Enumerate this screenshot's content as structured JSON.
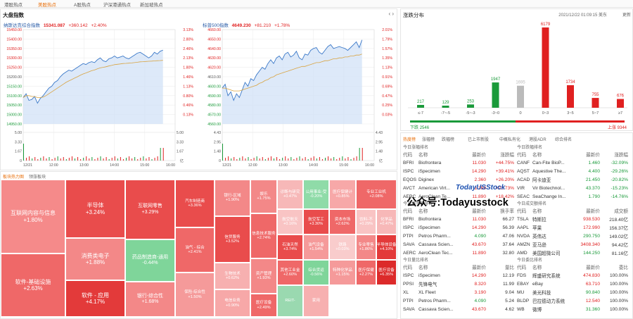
{
  "tabs": [
    "港股热点",
    "美股热点",
    "A股热点",
    "沪深港通热点",
    "新加坡热点"
  ],
  "market": {
    "title": "大盘指数",
    "nasdaq": {
      "name": "纳斯达克综合指数",
      "price": "15341.087",
      "change": "+360.142",
      "pct": "+2.40%",
      "y_ticks": [
        "15450.00",
        "15400.00",
        "15350.00",
        "15300.00",
        "15250.00",
        "15200.00",
        "15150.00",
        "15100.00",
        "15050.00",
        "15000.00",
        "14950.00"
      ],
      "pct_ticks": [
        "3.13%",
        "2.80%",
        "2.46%",
        "2.13%",
        "1.80%",
        "1.46%",
        "1.13%",
        "0.80%",
        "0.46%",
        "0.13%"
      ],
      "vol_left": [
        "5.00",
        "3.33",
        "1.67",
        "0"
      ],
      "vol_right": [
        "5.00",
        "3.33",
        "1.67",
        "亿"
      ],
      "x_ticks": [
        "12/21",
        "12:00",
        "13:00",
        "14:00",
        "15:00",
        "16:00"
      ],
      "series": [
        15090,
        15110,
        15075,
        15080,
        15095,
        15060,
        15085,
        15100,
        15120,
        15140,
        15150,
        15170,
        15180,
        15200,
        15215,
        15225,
        15235,
        15230,
        15240,
        15250,
        15260,
        15270,
        15265,
        15275,
        15280,
        15275,
        15290,
        15300,
        15285,
        15280,
        15295,
        15300,
        15310,
        15300,
        15305,
        15310,
        15300,
        15295,
        15305,
        15315,
        15325,
        15330,
        15320,
        15310,
        15300,
        15310,
        15330,
        15320,
        15335,
        15341
      ],
      "avg": [
        15090,
        15100,
        15100,
        15095,
        15095,
        15090,
        15090,
        15092,
        15100,
        15110,
        15120,
        15130,
        15140,
        15150,
        15160,
        15170,
        15178,
        15185,
        15193,
        15200,
        15208,
        15215,
        15220,
        15226,
        15232,
        15236,
        15242,
        15247,
        15250,
        15253,
        15257,
        15260,
        15264,
        15266,
        15268,
        15270,
        15271,
        15272,
        15273,
        15275,
        15277,
        15279,
        15280,
        15281,
        15282,
        15283,
        15284,
        15285,
        15286,
        15287
      ],
      "ylim": [
        14950,
        15450
      ]
    },
    "sp500": {
      "name": "标普500指数",
      "price": "4649.230",
      "change": "+81.210",
      "pct": "+1.78%",
      "y_ticks": [
        "4660.00",
        "4650.00",
        "4640.00",
        "4630.00",
        "4620.00",
        "4610.00",
        "4600.00",
        "4590.00",
        "4580.00",
        "4570.00",
        "4560.00"
      ],
      "pct_ticks": [
        "2.01%",
        "1.79%",
        "1.57%",
        "1.35%",
        "1.13%",
        "0.91%",
        "0.69%",
        "0.47%",
        "0.25%",
        "0.03%"
      ],
      "vol_left": [
        "4.43",
        "2.95",
        "1.48",
        "0"
      ],
      "vol_right": [
        "4.43",
        "2.95",
        "1.48",
        "亿"
      ],
      "x_ticks": [
        "12/21",
        "12:00",
        "13:00",
        "14:00",
        "15:00",
        "16:00"
      ],
      "series": [
        4598,
        4602,
        4590,
        4594,
        4585,
        4592,
        4588,
        4596,
        4604,
        4600,
        4608,
        4606,
        4612,
        4616,
        4620,
        4618,
        4624,
        4628,
        4624,
        4630,
        4632,
        4628,
        4634,
        4636,
        4631,
        4633,
        4637,
        4630,
        4628,
        4634,
        4633,
        4638,
        4640,
        4641,
        4636,
        4634,
        4638,
        4642,
        4644,
        4640,
        4641,
        4642,
        4641,
        4640,
        4638,
        4641,
        4644,
        4647,
        4641,
        4649
      ],
      "avg": [
        4598,
        4598,
        4597,
        4596,
        4595,
        4595,
        4595,
        4596,
        4597,
        4598,
        4599,
        4600,
        4601,
        4603,
        4604,
        4606,
        4607,
        4609,
        4610,
        4612,
        4613,
        4614,
        4615,
        4616,
        4617,
        4618,
        4619,
        4620,
        4621,
        4621,
        4622,
        4623,
        4624,
        4625,
        4625,
        4626,
        4627,
        4627,
        4628,
        4629,
        4629,
        4630,
        4630,
        4631,
        4631,
        4632,
        4632,
        4633,
        4633,
        4634
      ],
      "ylim": [
        4560,
        4660
      ]
    }
  },
  "dist": {
    "title": "涨跌分布",
    "datetime": "2021/12/22 01:09:15 美东",
    "more": "更新",
    "chart_data": {
      "type": "bar",
      "categories": [
        "≤-7",
        "-7~-5",
        "-5~-3",
        "-3~0",
        "0",
        "0~3",
        "3~5",
        "5~7",
        "≥7"
      ],
      "values": [
        217,
        129,
        253,
        1947,
        1695,
        6179,
        1734,
        755,
        676
      ]
    },
    "down_label": "下跌",
    "down": "2546",
    "up_label": "上涨",
    "up": "9344"
  },
  "heatmap": {
    "tabs": [
      "板块热力图",
      "领涨板块"
    ],
    "cells": [
      {
        "n": "互联网内容与信息",
        "p": "+1.80%",
        "c": "#f58a8a"
      },
      {
        "n": "软件-基础设施",
        "p": "+2.63%",
        "c": "#ef6868"
      },
      {
        "n": "半导体",
        "p": "+3.24%",
        "c": "#e94c4c"
      },
      {
        "n": "消费类电子",
        "p": "+1.88%",
        "c": "#f38888"
      },
      {
        "n": "软件 - 应用",
        "p": "+4.17%",
        "c": "#e33a3a"
      },
      {
        "n": "互联网零售",
        "p": "+3.29%",
        "c": "#e94c4c"
      },
      {
        "n": "药品制造商-通用",
        "p": "-0.44%",
        "c": "#7fd59a"
      },
      {
        "n": "银行-综合性",
        "p": "+1.68%",
        "c": "#f38888"
      },
      {
        "n": "汽车制造商",
        "p": "+3.36%",
        "c": "#e94c4c"
      },
      {
        "n": "油气 - 综合",
        "p": "+2.41%",
        "c": "#ef6868"
      },
      {
        "n": "保险-综合性",
        "p": "+1.50%",
        "c": "#f59a9a"
      },
      {
        "n": "银行-区域",
        "p": "+1.90%",
        "c": "#f38888"
      },
      {
        "n": "信贷服务",
        "p": "+3.52%",
        "c": "#e94c4c"
      },
      {
        "n": "生物技术",
        "p": "+0.62%",
        "c": "#f7b0b0"
      },
      {
        "n": "电信业务",
        "p": "+0.90%",
        "c": "#f7a8a8"
      },
      {
        "n": "娱乐",
        "p": "+1.75%",
        "c": "#f38888"
      },
      {
        "n": "信息技术服务",
        "p": "+2.74%",
        "c": "#ef6868"
      },
      {
        "n": "资产管理",
        "p": "+1.93%",
        "c": "#f38888"
      },
      {
        "n": "医疗设备",
        "p": "+2.49%",
        "c": "#ef6868"
      },
      {
        "n": "诊断与研究",
        "p": "+0.47%",
        "c": "#f7b8b8"
      },
      {
        "n": "公用事业-受",
        "p": "-0.20%",
        "c": "#8fdba8"
      },
      {
        "n": "医疗保健计",
        "p": "+0.85%",
        "c": "#f7a8a8"
      },
      {
        "n": "专业工业机",
        "p": "+2.08%",
        "c": "#ef6868"
      },
      {
        "n": "航空航天",
        "p": "+0.16%",
        "c": "#f9c4c4"
      },
      {
        "n": "航空军工",
        "p": "+3.30%",
        "c": "#e94c4c"
      },
      {
        "n": "资本市场",
        "p": "+2.62%",
        "c": "#ef6868"
      },
      {
        "n": "饮料-不",
        "p": "+0.29%",
        "c": "#f9c4c4"
      },
      {
        "n": "化学品",
        "p": "+0.47%",
        "c": "#f7b8b8"
      },
      {
        "n": "石油天然",
        "p": "+3.74%",
        "c": "#e94c4c"
      },
      {
        "n": "油气设备",
        "p": "+1.54%",
        "c": "#f59a9a"
      },
      {
        "n": "铁路",
        "p": "+0.03%",
        "c": "#f9cccc"
      },
      {
        "n": "专业零售",
        "p": "+1.86%",
        "c": "#f38888"
      },
      {
        "n": "半导体设备",
        "p": "+4.10%",
        "c": "#e33a3a"
      },
      {
        "n": "其他工业金",
        "p": "+2.60%",
        "c": "#ef6868"
      },
      {
        "n": "综合货运",
        "p": "-0.56%",
        "c": "#7fd59a"
      },
      {
        "n": "特种化学品",
        "p": "+1.15%",
        "c": "#f59a9a"
      },
      {
        "n": "医疗保健",
        "p": "+2.27%",
        "c": "#ef6868"
      },
      {
        "n": "医疗设备",
        "p": "+6.35%",
        "c": "#dc2a2a"
      },
      {
        "n": "REIT-",
        "p": "",
        "c": "#9ad9b0"
      },
      {
        "n": "家用",
        "p": "",
        "c": "#f7b0b0"
      }
    ]
  },
  "lists": {
    "tabs": [
      "热度榜",
      "涨幅榜",
      "跌幅榜",
      "已上市新股",
      "中概私有化",
      "港股ADR",
      "综合排名"
    ],
    "left_top": {
      "title": "今日涨幅排名",
      "cols": [
        "代码",
        "名称",
        "最新价",
        "涨跌幅"
      ],
      "rows": [
        [
          "BFRI",
          "Biofrontera",
          "11.030",
          "+44.75%"
        ],
        [
          "ISPC",
          "iSpecimen",
          "14.290",
          "+39.41%"
        ],
        [
          "EQOS",
          "Diginex",
          "2.360",
          "+26.20%"
        ],
        [
          "AVCT",
          "American Virt...",
          "1.350",
          "+22.73%"
        ],
        [
          "AERC",
          "AeroClean Te...",
          "11.890",
          "+18.42%"
        ]
      ]
    },
    "right_top": {
      "title": "今日跌幅排名",
      "cols": [
        "代码",
        "名称",
        "最新价",
        "涨跌幅"
      ],
      "rows": [
        [
          "CANF",
          "Can-Fite BioP...",
          "1.460",
          "-32.09%"
        ],
        [
          "AQST",
          "Aquestive The...",
          "4.400",
          "-29.26%"
        ],
        [
          "ACAD",
          "阿卡迪亚",
          "21.450",
          "-20.82%"
        ],
        [
          "VIR",
          "Vir Biotechnol...",
          "43.370",
          "-15.23%"
        ],
        [
          "SEAC",
          "SeaChange In...",
          "1.790",
          "-14.76%"
        ]
      ]
    },
    "left_mid": {
      "title": "今日换手率排名",
      "cols": [
        "代码",
        "名称",
        "最新价",
        "换手率"
      ],
      "rows": [
        [
          "BFRI",
          "Biofrontera",
          "11.030",
          "66.27"
        ],
        [
          "ISPC",
          "iSpecimen",
          "14.290",
          "56.39"
        ],
        [
          "PTPI",
          "Petros Pharm...",
          "4.090",
          "47.06"
        ],
        [
          "SAVA",
          "Cassava Scien...",
          "43.670",
          "37.64"
        ],
        [
          "AERC",
          "AeroClean Tec...",
          "11.890",
          "32.80"
        ]
      ]
    },
    "right_mid": {
      "title": "今日成交额排名",
      "cols": [
        "代码",
        "名称",
        "最新价",
        "成交额"
      ],
      "rows": [
        [
          "TSLA",
          "特斯拉",
          "938.530",
          "218.40亿"
        ],
        [
          "AAPL",
          "苹果",
          "172.990",
          "156.37亿"
        ],
        [
          "NVDA",
          "英伟达",
          "290.750",
          "149.02亿"
        ],
        [
          "AMZN",
          "亚马逊",
          "3408.340",
          "94.42亿"
        ],
        [
          "AMD",
          "美国超微公司",
          "144.250",
          "81.16亿"
        ]
      ]
    },
    "left_bot": {
      "title": "今日量比排名",
      "cols": [
        "代码",
        "名称",
        "最新价",
        "量比"
      ],
      "rows": [
        [
          "ISPC",
          "iSpecimen",
          "14.290",
          "12.19"
        ],
        [
          "PPSI",
          "先锋电气",
          "8.320",
          "11.99"
        ],
        [
          "XL",
          "XL Fleet",
          "3.190",
          "9.04"
        ],
        [
          "PTPI",
          "Petros Pharm...",
          "4.090",
          "5.24"
        ],
        [
          "SAVA",
          "Cassava Scien...",
          "43.670",
          "4.62"
        ]
      ]
    },
    "right_bot": {
      "title": "今日委比排名",
      "cols": [
        "代码",
        "名称",
        "最新价",
        "委比"
      ],
      "rows": [
        [
          "FDS",
          "辉盛研究系统",
          "474.830",
          "100.00%"
        ],
        [
          "EBAY",
          "eBay",
          "63.710",
          "100.00%"
        ],
        [
          "MU",
          "美光科技",
          "90.840",
          "100.00%"
        ],
        [
          "BLDP",
          "巴拉德动力系统",
          "12.540",
          "100.00%"
        ],
        [
          "WB",
          "微博",
          "31.360",
          "100.00%"
        ]
      ]
    }
  },
  "watermark": {
    "line1": "TodayUSStock",
    "line2": "公众号:Todayusstock"
  },
  "colors": {
    "up": "#e02020",
    "down": "#1a9a3a",
    "accent": "#e8700c"
  }
}
